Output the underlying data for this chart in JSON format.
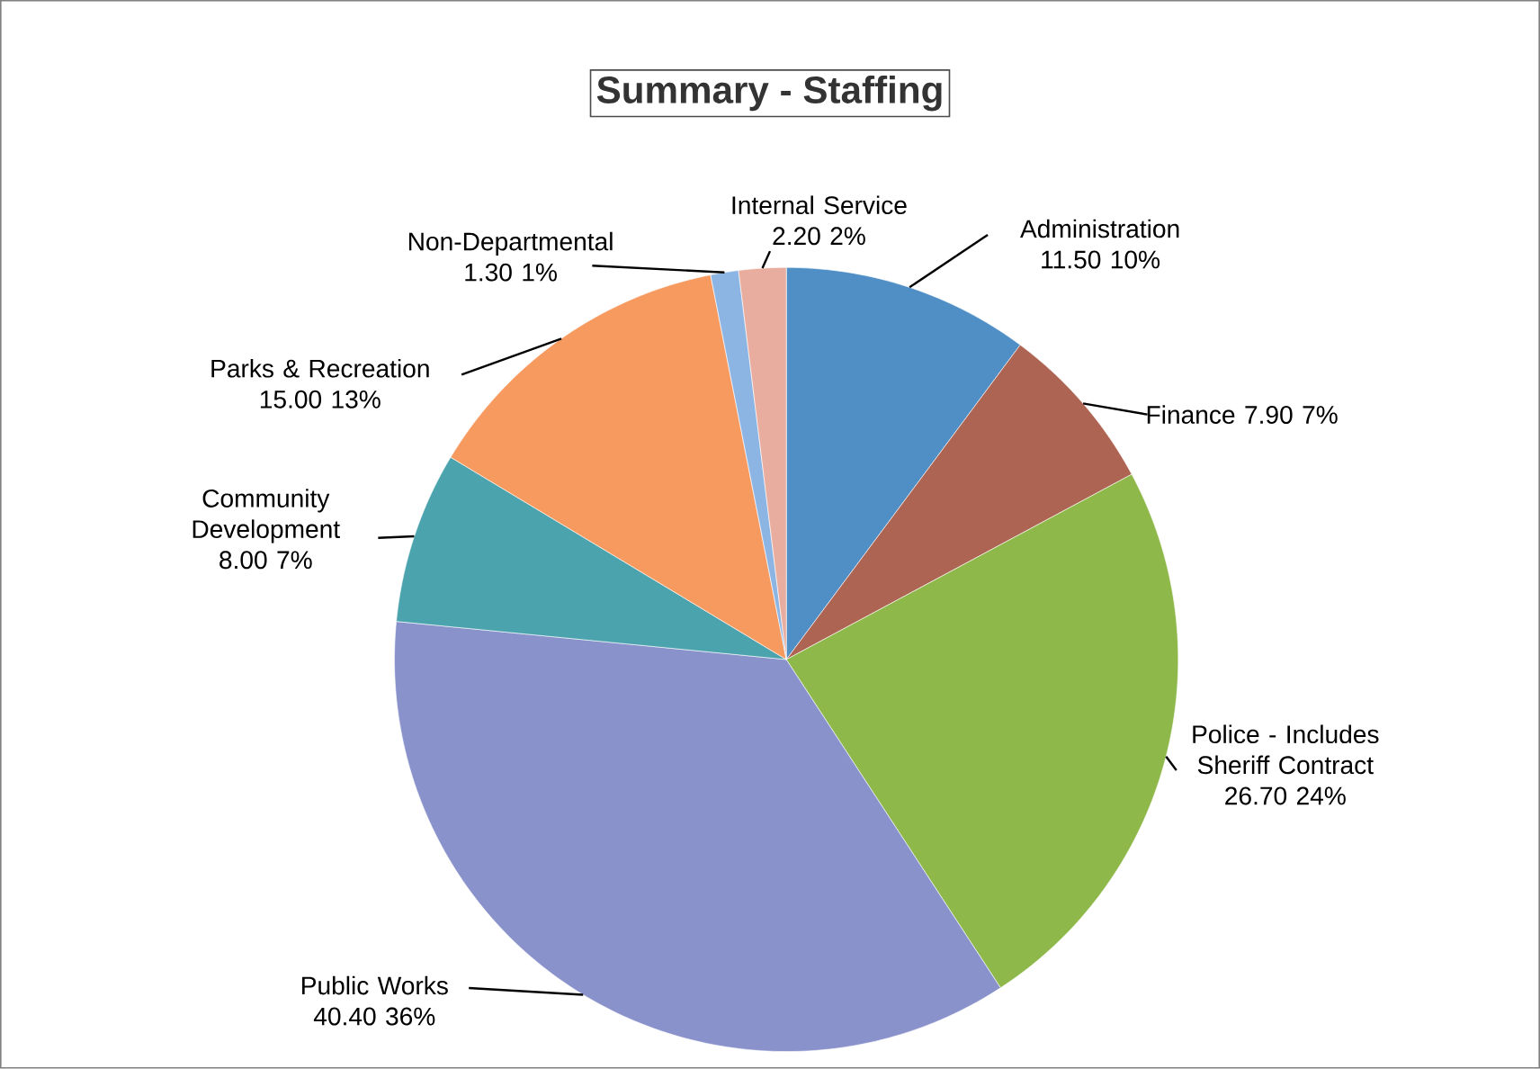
{
  "chart_data": {
    "type": "pie",
    "title": "Summary - Staffing",
    "categories": [
      "Administration",
      "Finance",
      "Police - Includes Sheriff Contract",
      "Public Works",
      "Community Development",
      "Parks & Recreation",
      "Non-Departmental",
      "Internal Service"
    ],
    "values": [
      11.5,
      7.9,
      26.7,
      40.4,
      8.0,
      15.0,
      1.3,
      2.2
    ],
    "value_labels": [
      "11.50 10%",
      "7.90 7%",
      "26.70 24%",
      "40.40 36%",
      "8.00 7%",
      "15.00 13%",
      "1.30 1%",
      "2.20 2%"
    ],
    "colors": [
      "#4f8fc6",
      "#ad6452",
      "#8fb84a",
      "#8a92cc",
      "#4ba3ad",
      "#f79a60",
      "#8db5e4",
      "#e8ad9e"
    ]
  }
}
